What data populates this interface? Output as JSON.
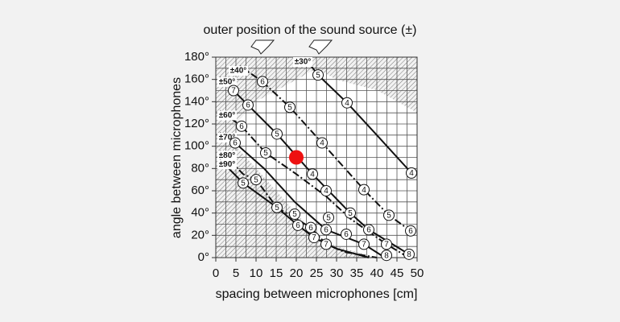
{
  "chart_data": {
    "type": "line",
    "title": "outer position of the sound source (±)",
    "x_label": "spacing between microphones [cm]",
    "y_label": "angle between microphones",
    "xlim": [
      0,
      50
    ],
    "ylim": [
      0,
      180
    ],
    "xticks": [
      0,
      5,
      10,
      15,
      20,
      25,
      30,
      35,
      40,
      45,
      50
    ],
    "yticks": [
      {
        "value": 0,
        "label": "0°"
      },
      {
        "value": 20,
        "label": "20°"
      },
      {
        "value": 40,
        "label": "40°"
      },
      {
        "value": 60,
        "label": "60°"
      },
      {
        "value": 80,
        "label": "80°"
      },
      {
        "value": 100,
        "label": "100°"
      },
      {
        "value": 120,
        "label": "120°"
      },
      {
        "value": 140,
        "label": "140°"
      },
      {
        "value": 160,
        "label": "160°"
      },
      {
        "value": 180,
        "label": "180°"
      }
    ],
    "x_minor_grid": [
      2.5,
      7.5,
      12.5,
      17.5,
      22.5,
      27.5,
      32.5,
      37.5,
      42.5,
      47.5
    ],
    "y_minor_grid": [
      10,
      30,
      50,
      70,
      90,
      110,
      130,
      150,
      170
    ],
    "grid": true,
    "series": [
      {
        "name": "±30°",
        "color": "#111111",
        "dash": false,
        "x": [
          22,
          25.4,
          32.6,
          40,
          48.6
        ],
        "values": [
          180,
          164,
          139,
          110,
          76
        ]
      },
      {
        "name": "±40°",
        "color": "#111111",
        "dash": true,
        "x": [
          6,
          11.6,
          18.4,
          26.4,
          36.8,
          43,
          48.4
        ],
        "values": [
          172,
          158,
          135,
          103,
          61,
          38,
          24
        ]
      },
      {
        "name": "±50°",
        "color": "#111111",
        "dash": false,
        "x": [
          1,
          4.4,
          8,
          15.2,
          24,
          33.4,
          38,
          48
        ],
        "values": [
          162,
          150,
          137,
          111,
          75,
          40,
          25,
          3
        ]
      },
      {
        "name": "±60°",
        "color": "#111111",
        "dash": true,
        "x": [
          1,
          6.4,
          12.4,
          20,
          27.4,
          33.4,
          42.4,
          47
        ],
        "values": [
          132,
          118,
          94,
          75,
          55,
          35,
          12,
          2
        ]
      },
      {
        "name": "±70°",
        "color": "#111111",
        "dash": false,
        "x": [
          1,
          4.8,
          12,
          19.6,
          27.4,
          36.8,
          42
        ],
        "values": [
          112,
          103,
          80,
          50,
          25,
          12,
          0
        ]
      },
      {
        "name": "±80°",
        "color": "#111111",
        "dash": true,
        "x": [
          1,
          6.8,
          10,
          15.2,
          23.6,
          27.4,
          32,
          40
        ],
        "values": [
          96,
          75,
          70,
          45,
          27,
          12,
          5,
          0
        ]
      },
      {
        "name": "±90°",
        "color": "#111111",
        "dash": false,
        "x": [
          1,
          6.8,
          15.2,
          20.4,
          24.4,
          30,
          38
        ],
        "values": [
          88,
          67,
          45,
          29,
          18,
          8,
          0
        ]
      }
    ],
    "markers": [
      {
        "x": 25.4,
        "y": 164,
        "label": "5"
      },
      {
        "x": 11.6,
        "y": 158,
        "label": "6"
      },
      {
        "x": 4.4,
        "y": 150,
        "label": "7"
      },
      {
        "x": 18.4,
        "y": 135,
        "label": "5"
      },
      {
        "x": 32.6,
        "y": 139,
        "label": "4"
      },
      {
        "x": 8,
        "y": 137,
        "label": "6"
      },
      {
        "x": 6.4,
        "y": 118,
        "label": "6"
      },
      {
        "x": 15.2,
        "y": 111,
        "label": "5"
      },
      {
        "x": 26.4,
        "y": 103,
        "label": "4"
      },
      {
        "x": 4.8,
        "y": 103,
        "label": "6"
      },
      {
        "x": 12.4,
        "y": 94,
        "label": "5"
      },
      {
        "x": 24,
        "y": 75,
        "label": "4"
      },
      {
        "x": 48.6,
        "y": 76,
        "label": "4"
      },
      {
        "x": 27.4,
        "y": 60,
        "label": "4"
      },
      {
        "x": 36.8,
        "y": 61,
        "label": "4"
      },
      {
        "x": 10,
        "y": 70,
        "label": "5"
      },
      {
        "x": 6.8,
        "y": 67,
        "label": "5"
      },
      {
        "x": 15.2,
        "y": 45,
        "label": "5"
      },
      {
        "x": 19.6,
        "y": 39,
        "label": "5"
      },
      {
        "x": 28,
        "y": 36,
        "label": "5"
      },
      {
        "x": 33.4,
        "y": 40,
        "label": "5"
      },
      {
        "x": 43,
        "y": 38,
        "label": "5"
      },
      {
        "x": 20.4,
        "y": 29,
        "label": "6"
      },
      {
        "x": 23.6,
        "y": 27,
        "label": "6"
      },
      {
        "x": 27.4,
        "y": 25,
        "label": "6"
      },
      {
        "x": 32.4,
        "y": 21,
        "label": "6"
      },
      {
        "x": 38,
        "y": 25,
        "label": "6"
      },
      {
        "x": 48.4,
        "y": 24,
        "label": "6"
      },
      {
        "x": 24.4,
        "y": 18,
        "label": "7"
      },
      {
        "x": 27.4,
        "y": 12,
        "label": "7"
      },
      {
        "x": 36.8,
        "y": 12,
        "label": "7"
      },
      {
        "x": 42.4,
        "y": 12,
        "label": "7"
      },
      {
        "x": 42.4,
        "y": 2,
        "label": "8"
      },
      {
        "x": 48,
        "y": 3,
        "label": "8"
      }
    ],
    "point": {
      "x": 20,
      "y": 90,
      "color": "#ee1111"
    }
  }
}
